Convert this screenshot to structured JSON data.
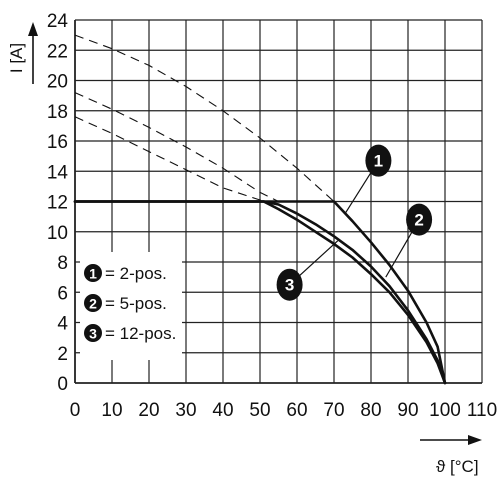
{
  "chart_data": {
    "type": "line",
    "title": "",
    "xlabel": "ϑ [°C]",
    "ylabel": "I [A]",
    "xlim": [
      0,
      110
    ],
    "ylim": [
      0,
      24
    ],
    "x_ticks": [
      "0",
      "10",
      "20",
      "30",
      "40",
      "50",
      "60",
      "70",
      "80",
      "90",
      "100",
      "110"
    ],
    "y_ticks": [
      "0",
      "2",
      "4",
      "6",
      "8",
      "10",
      "12",
      "14",
      "16",
      "18",
      "20",
      "22",
      "24"
    ],
    "grid": true,
    "legend_position": "bottom-left",
    "legend": [
      {
        "marker": "1",
        "label": "= 2-pos."
      },
      {
        "marker": "2",
        "label": "= 5-pos."
      },
      {
        "marker": "3",
        "label": "= 12-pos."
      }
    ],
    "series": [
      {
        "marker": "1",
        "style": "solid",
        "points": [
          [
            0,
            12
          ],
          [
            70,
            12
          ],
          [
            75,
            10.7
          ],
          [
            80,
            9.3
          ],
          [
            85,
            7.8
          ],
          [
            90,
            6.1
          ],
          [
            95,
            4.0
          ],
          [
            98,
            2.4
          ],
          [
            100,
            0
          ]
        ]
      },
      {
        "marker": "2",
        "style": "solid",
        "points": [
          [
            0,
            12
          ],
          [
            51,
            12
          ],
          [
            55,
            11.8
          ],
          [
            60,
            11.2
          ],
          [
            65,
            10.5
          ],
          [
            70,
            9.7
          ],
          [
            75,
            8.8
          ],
          [
            80,
            7.7
          ],
          [
            85,
            6.4
          ],
          [
            90,
            4.8
          ],
          [
            95,
            2.9
          ],
          [
            98,
            1.5
          ],
          [
            100,
            0
          ]
        ]
      },
      {
        "marker": "3",
        "style": "solid",
        "points": [
          [
            0,
            12
          ],
          [
            51,
            12
          ],
          [
            55,
            11.5
          ],
          [
            60,
            10.8
          ],
          [
            65,
            10.0
          ],
          [
            70,
            9.2
          ],
          [
            75,
            8.3
          ],
          [
            80,
            7.2
          ],
          [
            85,
            6.0
          ],
          [
            90,
            4.5
          ],
          [
            95,
            2.7
          ],
          [
            98,
            1.3
          ],
          [
            100,
            0
          ]
        ]
      },
      {
        "marker": "1",
        "style": "dashed",
        "points": [
          [
            0,
            23
          ],
          [
            10,
            22.1
          ],
          [
            20,
            21.0
          ],
          [
            30,
            19.6
          ],
          [
            40,
            18.0
          ],
          [
            50,
            16.2
          ],
          [
            60,
            14.2
          ],
          [
            70,
            12
          ]
        ]
      },
      {
        "marker": "2",
        "style": "dashed",
        "points": [
          [
            0,
            19.2
          ],
          [
            10,
            18.1
          ],
          [
            20,
            16.9
          ],
          [
            30,
            15.6
          ],
          [
            40,
            14.2
          ],
          [
            50,
            12.6
          ],
          [
            55,
            12
          ]
        ]
      },
      {
        "marker": "3",
        "style": "dashed",
        "points": [
          [
            0,
            17.6
          ],
          [
            10,
            16.5
          ],
          [
            20,
            15.3
          ],
          [
            30,
            14.1
          ],
          [
            40,
            12.9
          ],
          [
            50,
            12.1
          ],
          [
            52,
            12
          ]
        ]
      }
    ],
    "callouts": [
      {
        "marker": "1",
        "label_at": [
          82,
          14.7
        ],
        "tip_at": [
          73,
          11.2
        ]
      },
      {
        "marker": "2",
        "label_at": [
          93,
          10.8
        ],
        "tip_at": [
          84,
          7.0
        ]
      },
      {
        "marker": "3",
        "label_at": [
          58,
          6.5
        ],
        "tip_at": [
          71,
          9.4
        ]
      }
    ]
  }
}
